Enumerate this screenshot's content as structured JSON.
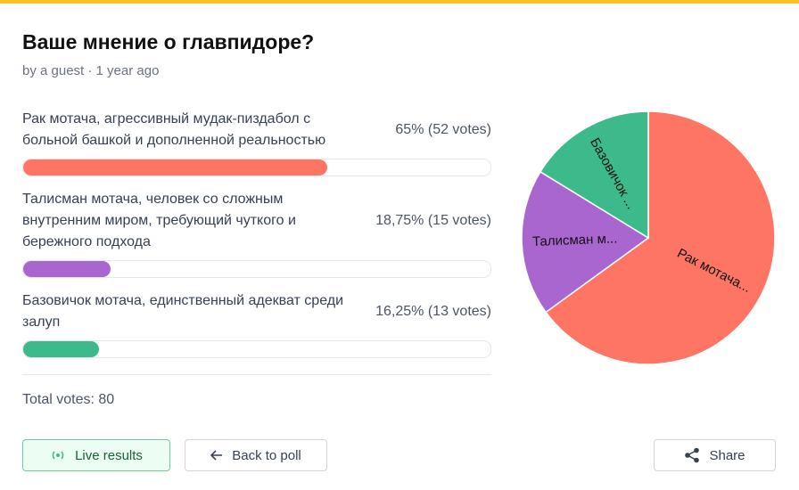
{
  "header": {
    "title": "Ваше мнение о главпидоре?",
    "byline": "by a guest · 1 year ago"
  },
  "options": [
    {
      "label": "Рак мотача, агрессивный мудак-пиздабол с больной башкой и дополненной реальностью",
      "percent": 65,
      "result_label": "65% (52 votes)",
      "color": "#ff7563",
      "pie_label": "Рак мотача..."
    },
    {
      "label": "Талисман мотача, человек со сложным внутренним миром, требующий чуткого и бережного подхода",
      "percent": 18.75,
      "result_label": "18,75% (15 votes)",
      "color": "#a966cf",
      "pie_label": "Талисман м..."
    },
    {
      "label": "Базовичок мотача, единственный адекват среди залуп",
      "percent": 16.25,
      "result_label": "16,25% (13 votes)",
      "color": "#3dba8c",
      "pie_label": "Базовичок ..."
    }
  ],
  "total": "Total votes: 80",
  "buttons": {
    "live": "Live results",
    "back": "Back to poll",
    "share": "Share"
  }
}
